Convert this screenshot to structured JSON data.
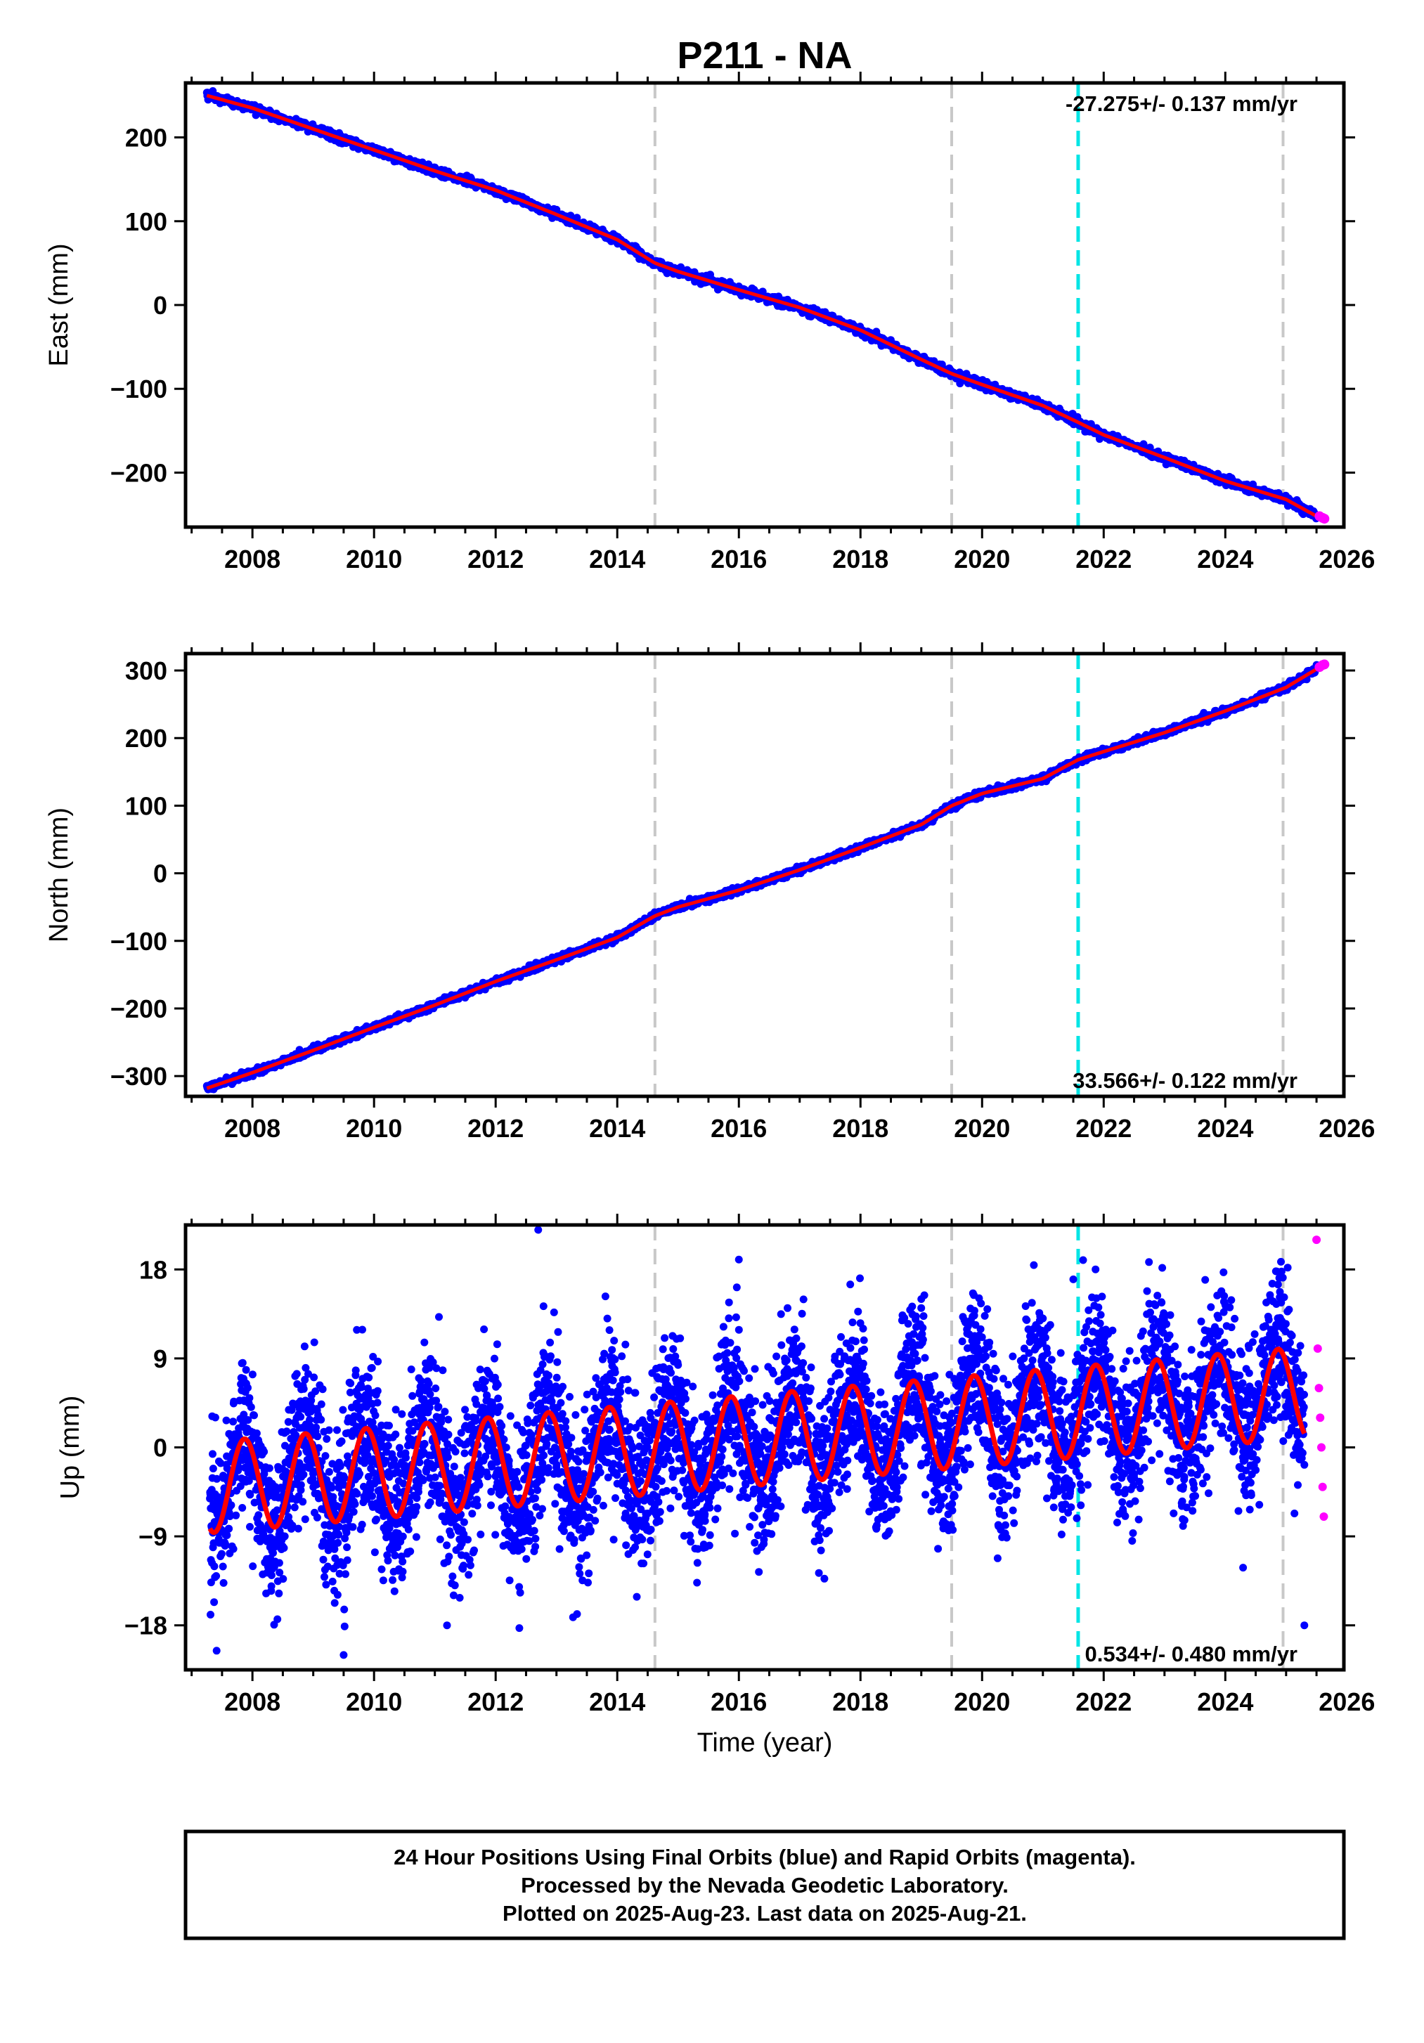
{
  "title": "P211 - NA",
  "colors": {
    "final_orbits": "#0000ff",
    "rapid_orbits": "#ff00ff",
    "model": "#ff0000",
    "equipment_change": "#c8c8c8",
    "earthquake": "#00e5e5"
  },
  "footer": {
    "line1": "24 Hour Positions Using Final Orbits (blue) and Rapid Orbits (magenta).",
    "line2": "Processed by the Nevada Geodetic Laboratory.",
    "line3": "Plotted on 2025-Aug-23. Last data on 2025-Aug-21."
  },
  "chart_data": [
    {
      "type": "scatter",
      "title": "P211 - NA",
      "ylabel": "East (mm)",
      "xlabel": "",
      "xlim": [
        2006.9,
        2025.95
      ],
      "ylim": [
        -265,
        265
      ],
      "x_ticks": [
        2008,
        2010,
        2012,
        2014,
        2016,
        2018,
        2020,
        2022,
        2024,
        2026
      ],
      "y_ticks": [
        200,
        100,
        0,
        -100,
        -200
      ],
      "y_tick_labels": [
        "200",
        "100",
        "0",
        "−100",
        "−200"
      ],
      "rate_text": "-27.275+/- 0.137 mm/yr",
      "rate_position": "top-right",
      "vertical_lines": [
        {
          "x": 2014.62,
          "kind": "equipment"
        },
        {
          "x": 2019.5,
          "kind": "equipment"
        },
        {
          "x": 2021.58,
          "kind": "earthquake"
        },
        {
          "x": 2024.95,
          "kind": "equipment"
        }
      ],
      "series": [
        {
          "name": "Final Orbits",
          "x": [
            2007.25,
            2008.0,
            2009.0,
            2010.0,
            2011.0,
            2012.0,
            2013.0,
            2014.0,
            2014.62,
            2015.0,
            2016.0,
            2017.0,
            2018.0,
            2019.0,
            2019.5,
            2020.0,
            2021.0,
            2021.58,
            2022.0,
            2023.0,
            2024.0,
            2025.0,
            2025.5
          ],
          "y": [
            250,
            235,
            210,
            185,
            160,
            137,
            108,
            78,
            50,
            40,
            18,
            -3,
            -30,
            -65,
            -82,
            -95,
            -120,
            -140,
            -155,
            -182,
            -210,
            -232,
            -252
          ]
        },
        {
          "name": "Rapid Orbits",
          "x": [
            2025.55,
            2025.6,
            2025.63
          ],
          "y": [
            -252,
            -254,
            -255
          ]
        }
      ]
    },
    {
      "type": "scatter",
      "ylabel": "North (mm)",
      "xlabel": "",
      "xlim": [
        2006.9,
        2025.95
      ],
      "ylim": [
        -330,
        325
      ],
      "x_ticks": [
        2008,
        2010,
        2012,
        2014,
        2016,
        2018,
        2020,
        2022,
        2024,
        2026
      ],
      "y_ticks": [
        300,
        200,
        100,
        0,
        -100,
        -200,
        -300
      ],
      "y_tick_labels": [
        "300",
        "200",
        "100",
        "0",
        "−100",
        "−200",
        "−300"
      ],
      "rate_text": "33.566+/- 0.122 mm/yr",
      "rate_position": "bottom-right",
      "vertical_lines": [
        {
          "x": 2014.62,
          "kind": "equipment"
        },
        {
          "x": 2019.5,
          "kind": "equipment"
        },
        {
          "x": 2021.58,
          "kind": "earthquake"
        },
        {
          "x": 2024.95,
          "kind": "equipment"
        }
      ],
      "series": [
        {
          "name": "Final Orbits",
          "x": [
            2007.25,
            2008.0,
            2009.0,
            2010.0,
            2011.0,
            2012.0,
            2013.0,
            2014.0,
            2014.62,
            2015.0,
            2016.0,
            2017.0,
            2018.0,
            2019.0,
            2019.5,
            2020.0,
            2021.0,
            2021.58,
            2022.0,
            2023.0,
            2024.0,
            2025.0,
            2025.5
          ],
          "y": [
            -318,
            -295,
            -262,
            -228,
            -195,
            -160,
            -128,
            -95,
            -63,
            -50,
            -25,
            5,
            38,
            72,
            100,
            118,
            140,
            168,
            180,
            208,
            240,
            275,
            302
          ]
        },
        {
          "name": "Rapid Orbits",
          "x": [
            2025.55,
            2025.6,
            2025.63
          ],
          "y": [
            305,
            308,
            309
          ]
        }
      ]
    },
    {
      "type": "scatter",
      "ylabel": "Up (mm)",
      "xlabel": "Time (year)",
      "xlim": [
        2006.9,
        2025.95
      ],
      "ylim": [
        -22.5,
        22.5
      ],
      "x_ticks": [
        2008,
        2010,
        2012,
        2014,
        2016,
        2018,
        2020,
        2022,
        2024,
        2026
      ],
      "y_ticks": [
        18,
        9,
        0,
        -9,
        -18
      ],
      "y_tick_labels": [
        "18",
        "9",
        "0",
        "−9",
        "−18"
      ],
      "rate_text": "0.534+/- 0.480 mm/yr",
      "rate_position": "bottom-right",
      "vertical_lines": [
        {
          "x": 2014.62,
          "kind": "equipment"
        },
        {
          "x": 2019.5,
          "kind": "equipment"
        },
        {
          "x": 2021.58,
          "kind": "earthquake"
        },
        {
          "x": 2024.95,
          "kind": "equipment"
        }
      ],
      "model": {
        "offset_at_2016": 0.6,
        "trend_mm_per_yr": 0.534,
        "annual_amplitude_mm": 4.6,
        "annual_peak_fraction_of_year": 0.87,
        "note_scatter_std_mm": 4.0
      },
      "series": [
        {
          "name": "Final Orbits",
          "x": [
            2007.3,
            2008.0,
            2009.0,
            2009.5,
            2010.0,
            2011.2,
            2012.0,
            2012.7,
            2013.0,
            2014.0,
            2015.0,
            2016.0,
            2017.2,
            2018.0,
            2019.0,
            2019.7,
            2020.0,
            2021.5,
            2022.0,
            2023.0,
            2024.0,
            2025.0,
            2025.3
          ],
          "y": [
            -8,
            0,
            -5,
            -21,
            2,
            -18,
            3,
            22,
            -4,
            3,
            5,
            19,
            -12,
            6,
            15,
            -14,
            3,
            17,
            -3,
            -12,
            4,
            -2,
            -18
          ]
        },
        {
          "name": "Rapid Orbits",
          "x": [
            2025.5,
            2025.52,
            2025.54,
            2025.56,
            2025.58,
            2025.6,
            2025.62
          ],
          "y": [
            21,
            10,
            6,
            3,
            0,
            -4,
            -7
          ]
        }
      ]
    }
  ]
}
